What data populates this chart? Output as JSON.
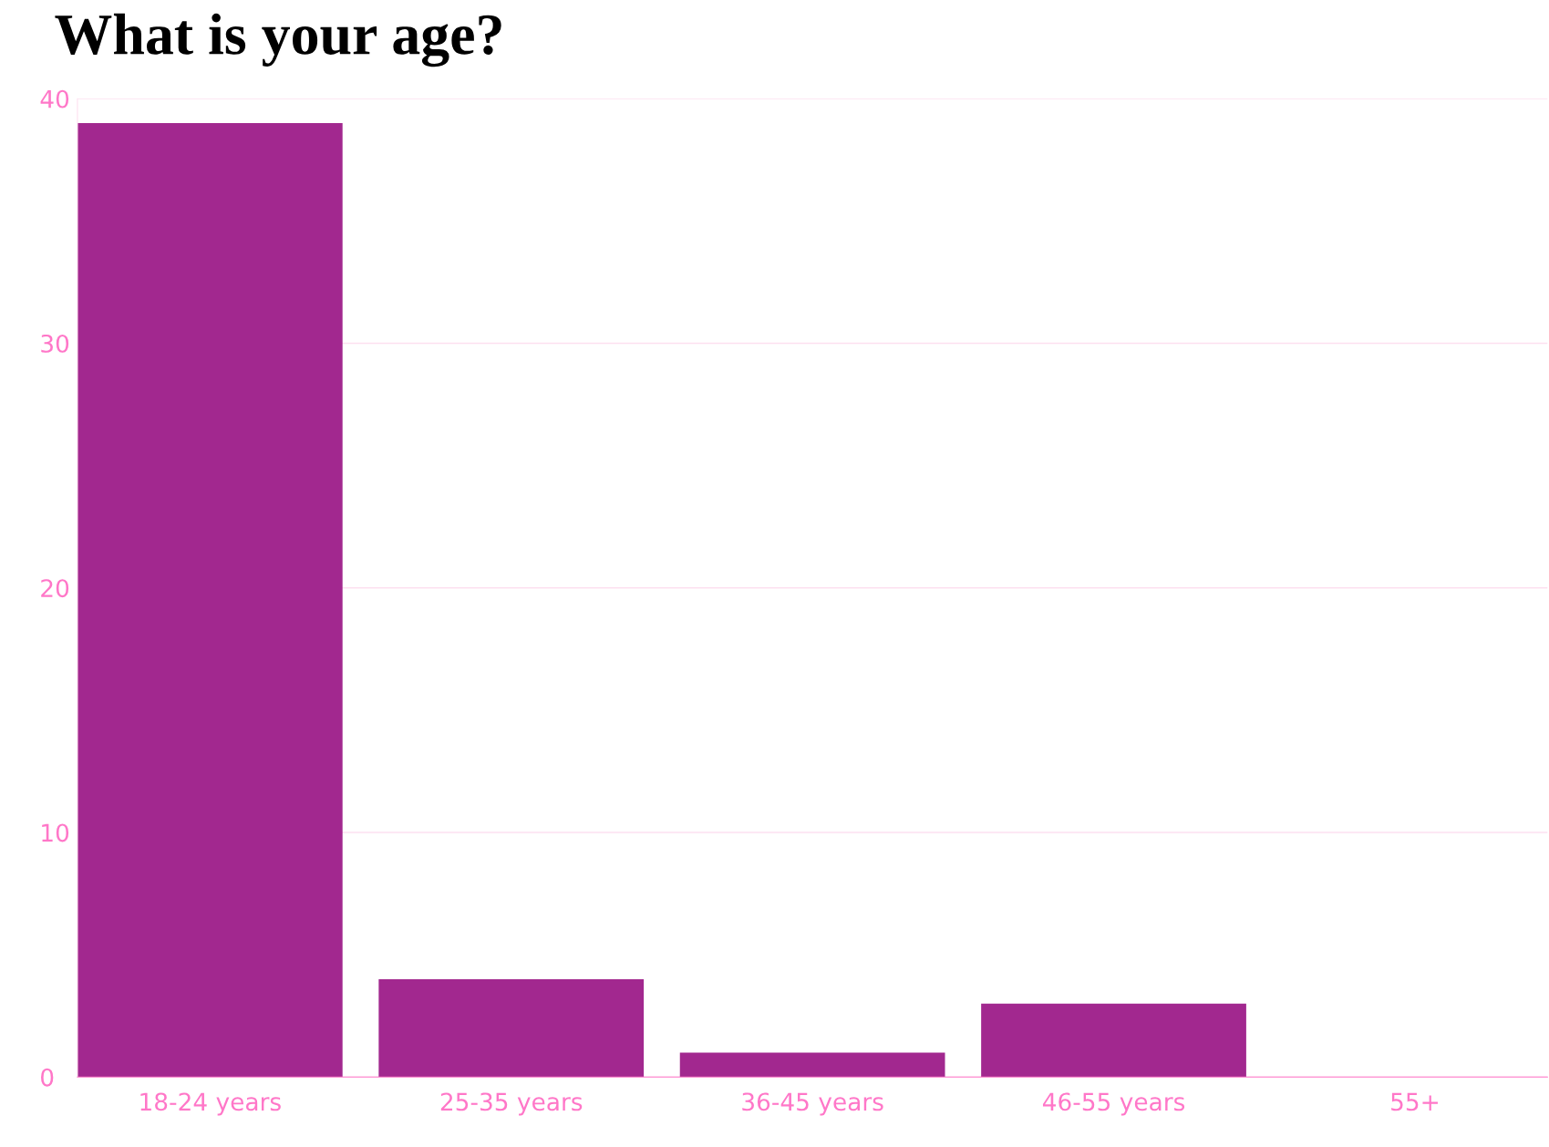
{
  "chart_data": {
    "type": "bar",
    "title": "What is your age?",
    "categories": [
      "18-24 years",
      "25-35 years",
      "36-45 years",
      "46-55 years",
      "55+"
    ],
    "values": [
      39,
      4,
      1,
      3,
      0
    ],
    "color": "#a2288f",
    "ylim": [
      0,
      40
    ],
    "yticks": [
      0,
      10,
      20,
      30,
      40
    ],
    "grid": "y",
    "legend": false
  }
}
